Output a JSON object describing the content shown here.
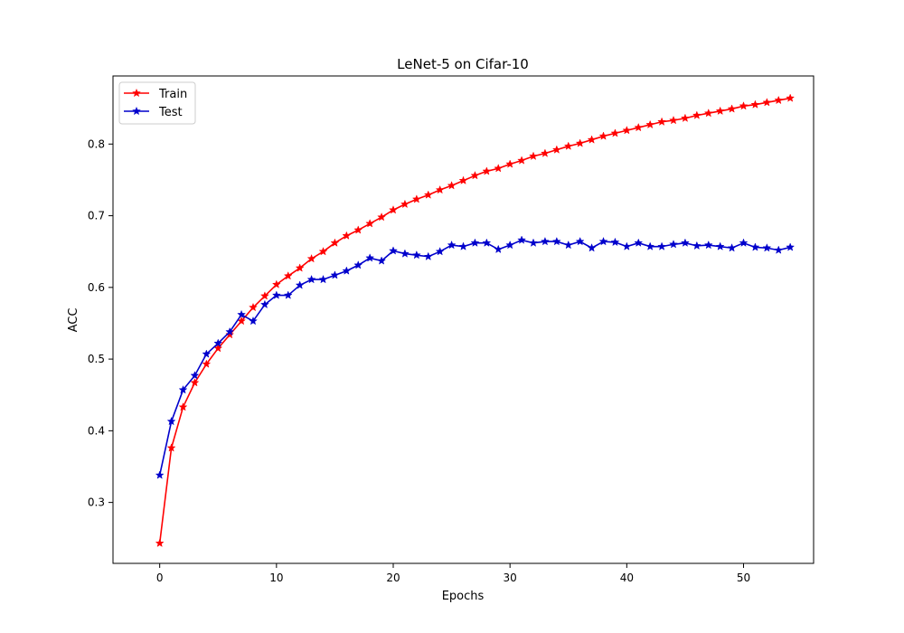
{
  "chart_data": {
    "type": "line",
    "title": "LeNet-5 on Cifar-10",
    "xlabel": "Epochs",
    "ylabel": "ACC",
    "xlim": [
      -4,
      56
    ],
    "ylim": [
      0.215,
      0.895
    ],
    "xticks": [
      0,
      10,
      20,
      30,
      40,
      50
    ],
    "yticks": [
      0.3,
      0.4,
      0.5,
      0.6,
      0.7,
      0.8
    ],
    "grid": false,
    "legend": "top-left",
    "x": [
      0,
      1,
      2,
      3,
      4,
      5,
      6,
      7,
      8,
      9,
      10,
      11,
      12,
      13,
      14,
      15,
      16,
      17,
      18,
      19,
      20,
      21,
      22,
      23,
      24,
      25,
      26,
      27,
      28,
      29,
      30,
      31,
      32,
      33,
      34,
      35,
      36,
      37,
      38,
      39,
      40,
      41,
      42,
      43,
      44,
      45,
      46,
      47,
      48,
      49,
      50,
      51,
      52,
      53,
      54
    ],
    "series": [
      {
        "name": "Train",
        "color": "#ff0000",
        "marker": "star",
        "values": [
          0.243,
          0.376,
          0.433,
          0.467,
          0.493,
          0.515,
          0.534,
          0.553,
          0.572,
          0.588,
          0.604,
          0.616,
          0.627,
          0.64,
          0.65,
          0.662,
          0.672,
          0.68,
          0.689,
          0.698,
          0.708,
          0.716,
          0.723,
          0.729,
          0.736,
          0.742,
          0.749,
          0.756,
          0.762,
          0.766,
          0.772,
          0.777,
          0.783,
          0.787,
          0.792,
          0.797,
          0.801,
          0.806,
          0.811,
          0.815,
          0.819,
          0.823,
          0.827,
          0.831,
          0.833,
          0.836,
          0.84,
          0.843,
          0.846,
          0.849,
          0.853,
          0.855,
          0.858,
          0.861,
          0.864
        ]
      },
      {
        "name": "Test",
        "color": "#0000cc",
        "marker": "star",
        "values": [
          0.338,
          0.413,
          0.457,
          0.477,
          0.507,
          0.522,
          0.538,
          0.562,
          0.553,
          0.576,
          0.589,
          0.589,
          0.603,
          0.611,
          0.611,
          0.617,
          0.623,
          0.631,
          0.641,
          0.637,
          0.651,
          0.647,
          0.645,
          0.643,
          0.65,
          0.659,
          0.657,
          0.662,
          0.662,
          0.653,
          0.659,
          0.666,
          0.662,
          0.664,
          0.664,
          0.659,
          0.664,
          0.655,
          0.664,
          0.663,
          0.657,
          0.662,
          0.657,
          0.657,
          0.66,
          0.662,
          0.658,
          0.659,
          0.657,
          0.655,
          0.662,
          0.656,
          0.655,
          0.652,
          0.656
        ]
      }
    ]
  }
}
